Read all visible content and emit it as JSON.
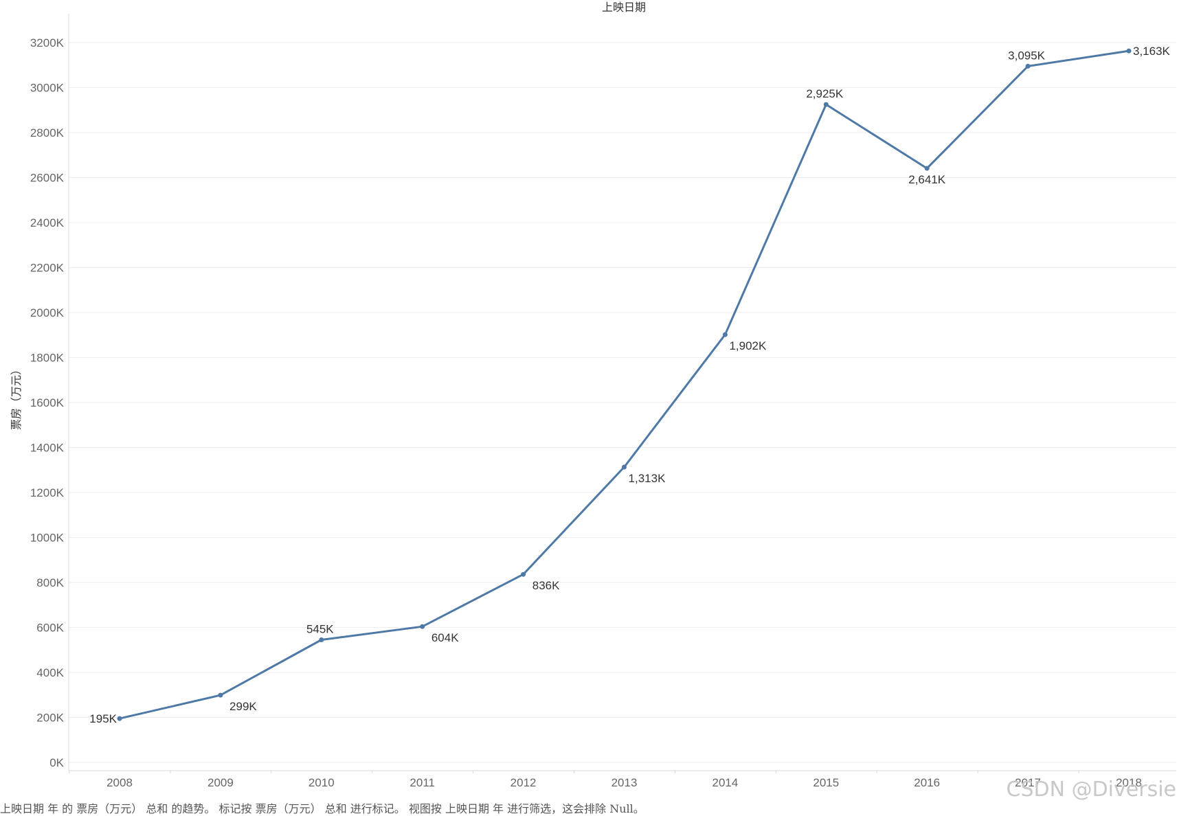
{
  "chart_data": {
    "type": "line",
    "title": "上映日期",
    "xlabel": "",
    "ylabel": "票房（万元）",
    "categories": [
      "2008",
      "2009",
      "2010",
      "2011",
      "2012",
      "2013",
      "2014",
      "2015",
      "2016",
      "2017",
      "2018"
    ],
    "series": [
      {
        "values": [
          195,
          299,
          545,
          604,
          836,
          1313,
          1902,
          2925,
          2641,
          3095,
          3163
        ]
      }
    ],
    "data_labels": [
      "195K",
      "299K",
      "545K",
      "604K",
      "836K",
      "1,313K",
      "1,902K",
      "2,925K",
      "2,641K",
      "3,095K",
      "3,163K"
    ],
    "ylim": [
      0,
      3200
    ],
    "y_ticks": [
      0,
      200,
      400,
      600,
      800,
      1000,
      1200,
      1400,
      1600,
      1800,
      2000,
      2200,
      2400,
      2600,
      2800,
      3000,
      3200
    ],
    "y_tick_labels": [
      "0K",
      "200K",
      "400K",
      "600K",
      "800K",
      "1000K",
      "1200K",
      "1400K",
      "1600K",
      "1800K",
      "2000K",
      "2200K",
      "2400K",
      "2600K",
      "2800K",
      "3000K",
      "3200K"
    ],
    "grid": true,
    "legend": "none",
    "line_color": "#4e79a7"
  },
  "caption": "上映日期 年 的 票房（万元） 总和 的趋势。 标记按 票房（万元） 总和 进行标记。 视图按 上映日期 年 进行筛选，这会排除 Null。",
  "watermark": "CSDN @Diversie"
}
